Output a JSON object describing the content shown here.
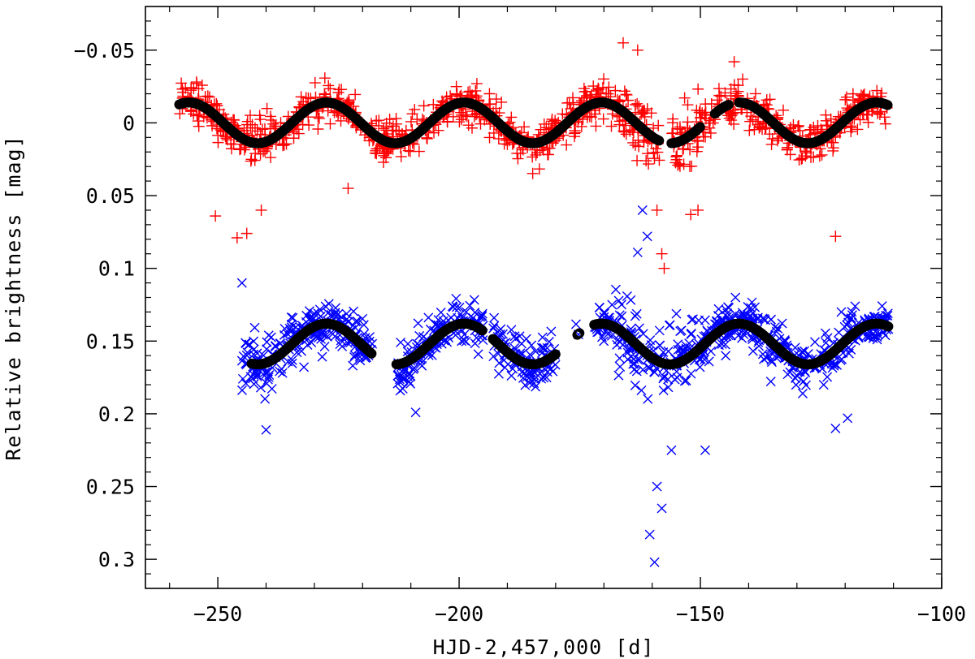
{
  "chart_data": {
    "type": "scatter",
    "title": "",
    "xlabel": "HJD-2,457,000 [d]",
    "ylabel": "Relative brightness [mag]",
    "xlim": [
      -265,
      -100
    ],
    "ylim": [
      0.32,
      -0.08
    ],
    "y_inverted": true,
    "grid": false,
    "x_ticks": [
      -250,
      -200,
      -150,
      -100
    ],
    "x_tick_labels": [
      "−250",
      "−200",
      "−150",
      "−100"
    ],
    "y_ticks": [
      -0.05,
      0,
      0.05,
      0.1,
      0.15,
      0.2,
      0.25,
      0.3
    ],
    "y_tick_labels": [
      "−0.05",
      "0",
      "0.05",
      "0.1",
      "0.15",
      "0.2",
      "0.25",
      "0.3"
    ],
    "series": [
      {
        "name": "upper observations",
        "marker": "plus",
        "color": "#ff0000",
        "x_range": [
          -258,
          -111
        ],
        "baseline": 0.0,
        "amplitude": 0.014,
        "period_days": 28.5,
        "phase_ref": -227.5,
        "scatter_mag": 0.014,
        "notable_points": [
          [
            -250.5,
            0.064
          ],
          [
            -246,
            0.079
          ],
          [
            -244,
            0.076
          ],
          [
            -241,
            0.06
          ],
          [
            -223,
            0.045
          ],
          [
            -166,
            -0.055
          ],
          [
            -163,
            -0.05
          ],
          [
            -159,
            0.06
          ],
          [
            -158,
            0.09
          ],
          [
            -157.5,
            0.1
          ],
          [
            -152,
            0.063
          ],
          [
            -150.5,
            0.06
          ],
          [
            -122,
            0.078
          ],
          [
            -143,
            -0.042
          ]
        ]
      },
      {
        "name": "lower observations",
        "marker": "cross",
        "color": "#0000ff",
        "x_range": [
          -245,
          -111
        ],
        "baseline": 0.152,
        "amplitude": 0.014,
        "period_days": 28.5,
        "phase_ref": -227.5,
        "scatter_mag": 0.017,
        "notable_points": [
          [
            -245,
            0.11
          ],
          [
            -240,
            0.211
          ],
          [
            -209,
            0.199
          ],
          [
            -162,
            0.06
          ],
          [
            -161,
            0.078
          ],
          [
            -160.5,
            0.283
          ],
          [
            -159.5,
            0.302
          ],
          [
            -159,
            0.25
          ],
          [
            -158,
            0.265
          ],
          [
            -156,
            0.225
          ],
          [
            -149,
            0.225
          ],
          [
            -122,
            0.21
          ],
          [
            -119.5,
            0.203
          ],
          [
            -163,
            0.089
          ]
        ]
      },
      {
        "name": "upper sinusoid fit",
        "marker": "circle",
        "color": "#000000",
        "baseline": 0.0,
        "amplitude": 0.014,
        "period_days": 28.5,
        "phase_ref": -227.5,
        "segments": [
          [
            -258,
            -158.5
          ],
          [
            -156,
            -150
          ],
          [
            -147,
            -144
          ],
          [
            -142,
            -111
          ]
        ]
      },
      {
        "name": "lower sinusoid fit",
        "marker": "circle",
        "color": "#000000",
        "baseline": 0.152,
        "amplitude": 0.014,
        "period_days": 28.5,
        "phase_ref": -227.5,
        "segments": [
          [
            -243,
            -218
          ],
          [
            -213,
            -195
          ],
          [
            -193,
            -180
          ],
          [
            -175.5,
            -175
          ],
          [
            -172,
            -111
          ]
        ]
      }
    ]
  }
}
